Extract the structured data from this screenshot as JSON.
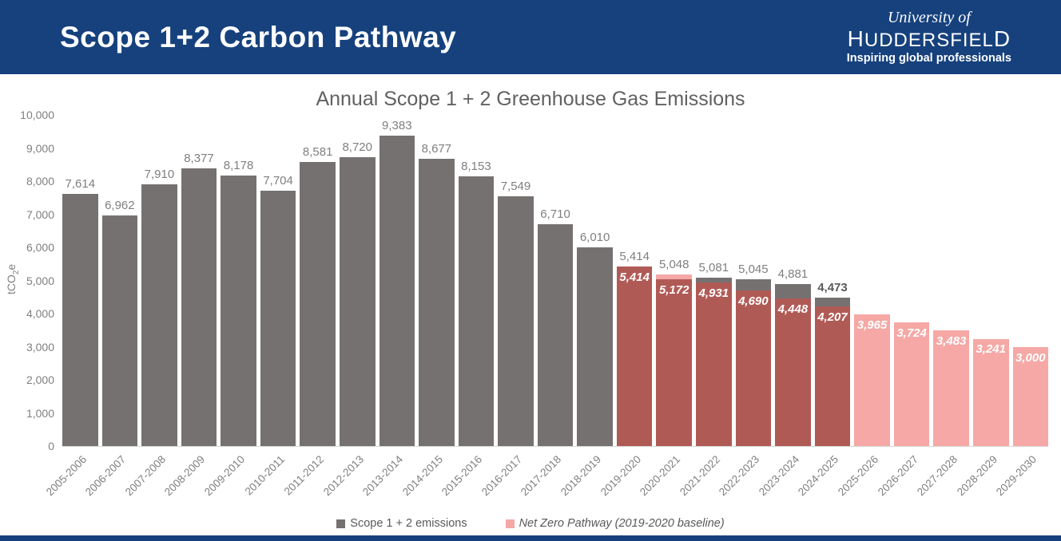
{
  "colors": {
    "navy": "#16417D",
    "bar_gray": "#767171",
    "bar_pink": "#F5A8A5",
    "bar_overlap": "#B05A56",
    "label_gray": "#7f7f7f",
    "axis_line": "#d9d9d9"
  },
  "header": {
    "title": "Scope 1+2 Carbon Pathway",
    "logo": {
      "line1": "University of",
      "line2": "HUDDERSFIELD",
      "line3": "Inspiring global professionals"
    }
  },
  "chart_data": {
    "type": "bar",
    "title": "Annual Scope 1 + 2 Greenhouse Gas Emissions",
    "ylabel_parts": {
      "pre": "tCO",
      "sub": "2",
      "post": "e"
    },
    "ylim": [
      0,
      10000
    ],
    "ytick_step": 1000,
    "grid": false,
    "legend_position": "bottom",
    "categories": [
      "2005-2006",
      "2006-2007",
      "2007-2008",
      "2008-2009",
      "2009-2010",
      "2010-2011",
      "2011-2012",
      "2012-2013",
      "2013-2014",
      "2014-2015",
      "2015-2016",
      "2016-2017",
      "2017-2018",
      "2018-2019",
      "2019-2020",
      "2020-2021",
      "2021-2022",
      "2022-2023",
      "2023-2024",
      "2024-2025",
      "2025-2026",
      "2026-2027",
      "2027-2028",
      "2028-2029",
      "2029-2030"
    ],
    "series": [
      {
        "name": "Scope 1 + 2 emissions",
        "color": "#767171",
        "values": [
          7614,
          6962,
          7910,
          8377,
          8178,
          7704,
          8581,
          8720,
          9383,
          8677,
          8153,
          7549,
          6710,
          6010,
          5414,
          5048,
          5081,
          5045,
          4881,
          4473,
          null,
          null,
          null,
          null,
          null
        ]
      },
      {
        "name": "Net Zero Pathway (2019-2020 baseline)",
        "color": "#F5A8A5",
        "values": [
          null,
          null,
          null,
          null,
          null,
          null,
          null,
          null,
          null,
          null,
          null,
          null,
          null,
          null,
          5414,
          5172,
          4931,
          4690,
          4448,
          4207,
          3965,
          3724,
          3483,
          3241,
          3000
        ]
      }
    ],
    "overlap_color": "#B05A56",
    "bold_category": "2024-2025"
  },
  "legend": {
    "items": [
      {
        "label": "Scope 1 + 2 emissions",
        "color": "#767171",
        "italic": false
      },
      {
        "label": "Net Zero Pathway (2019-2020 baseline)",
        "color": "#F5A8A5",
        "italic": true
      }
    ]
  }
}
